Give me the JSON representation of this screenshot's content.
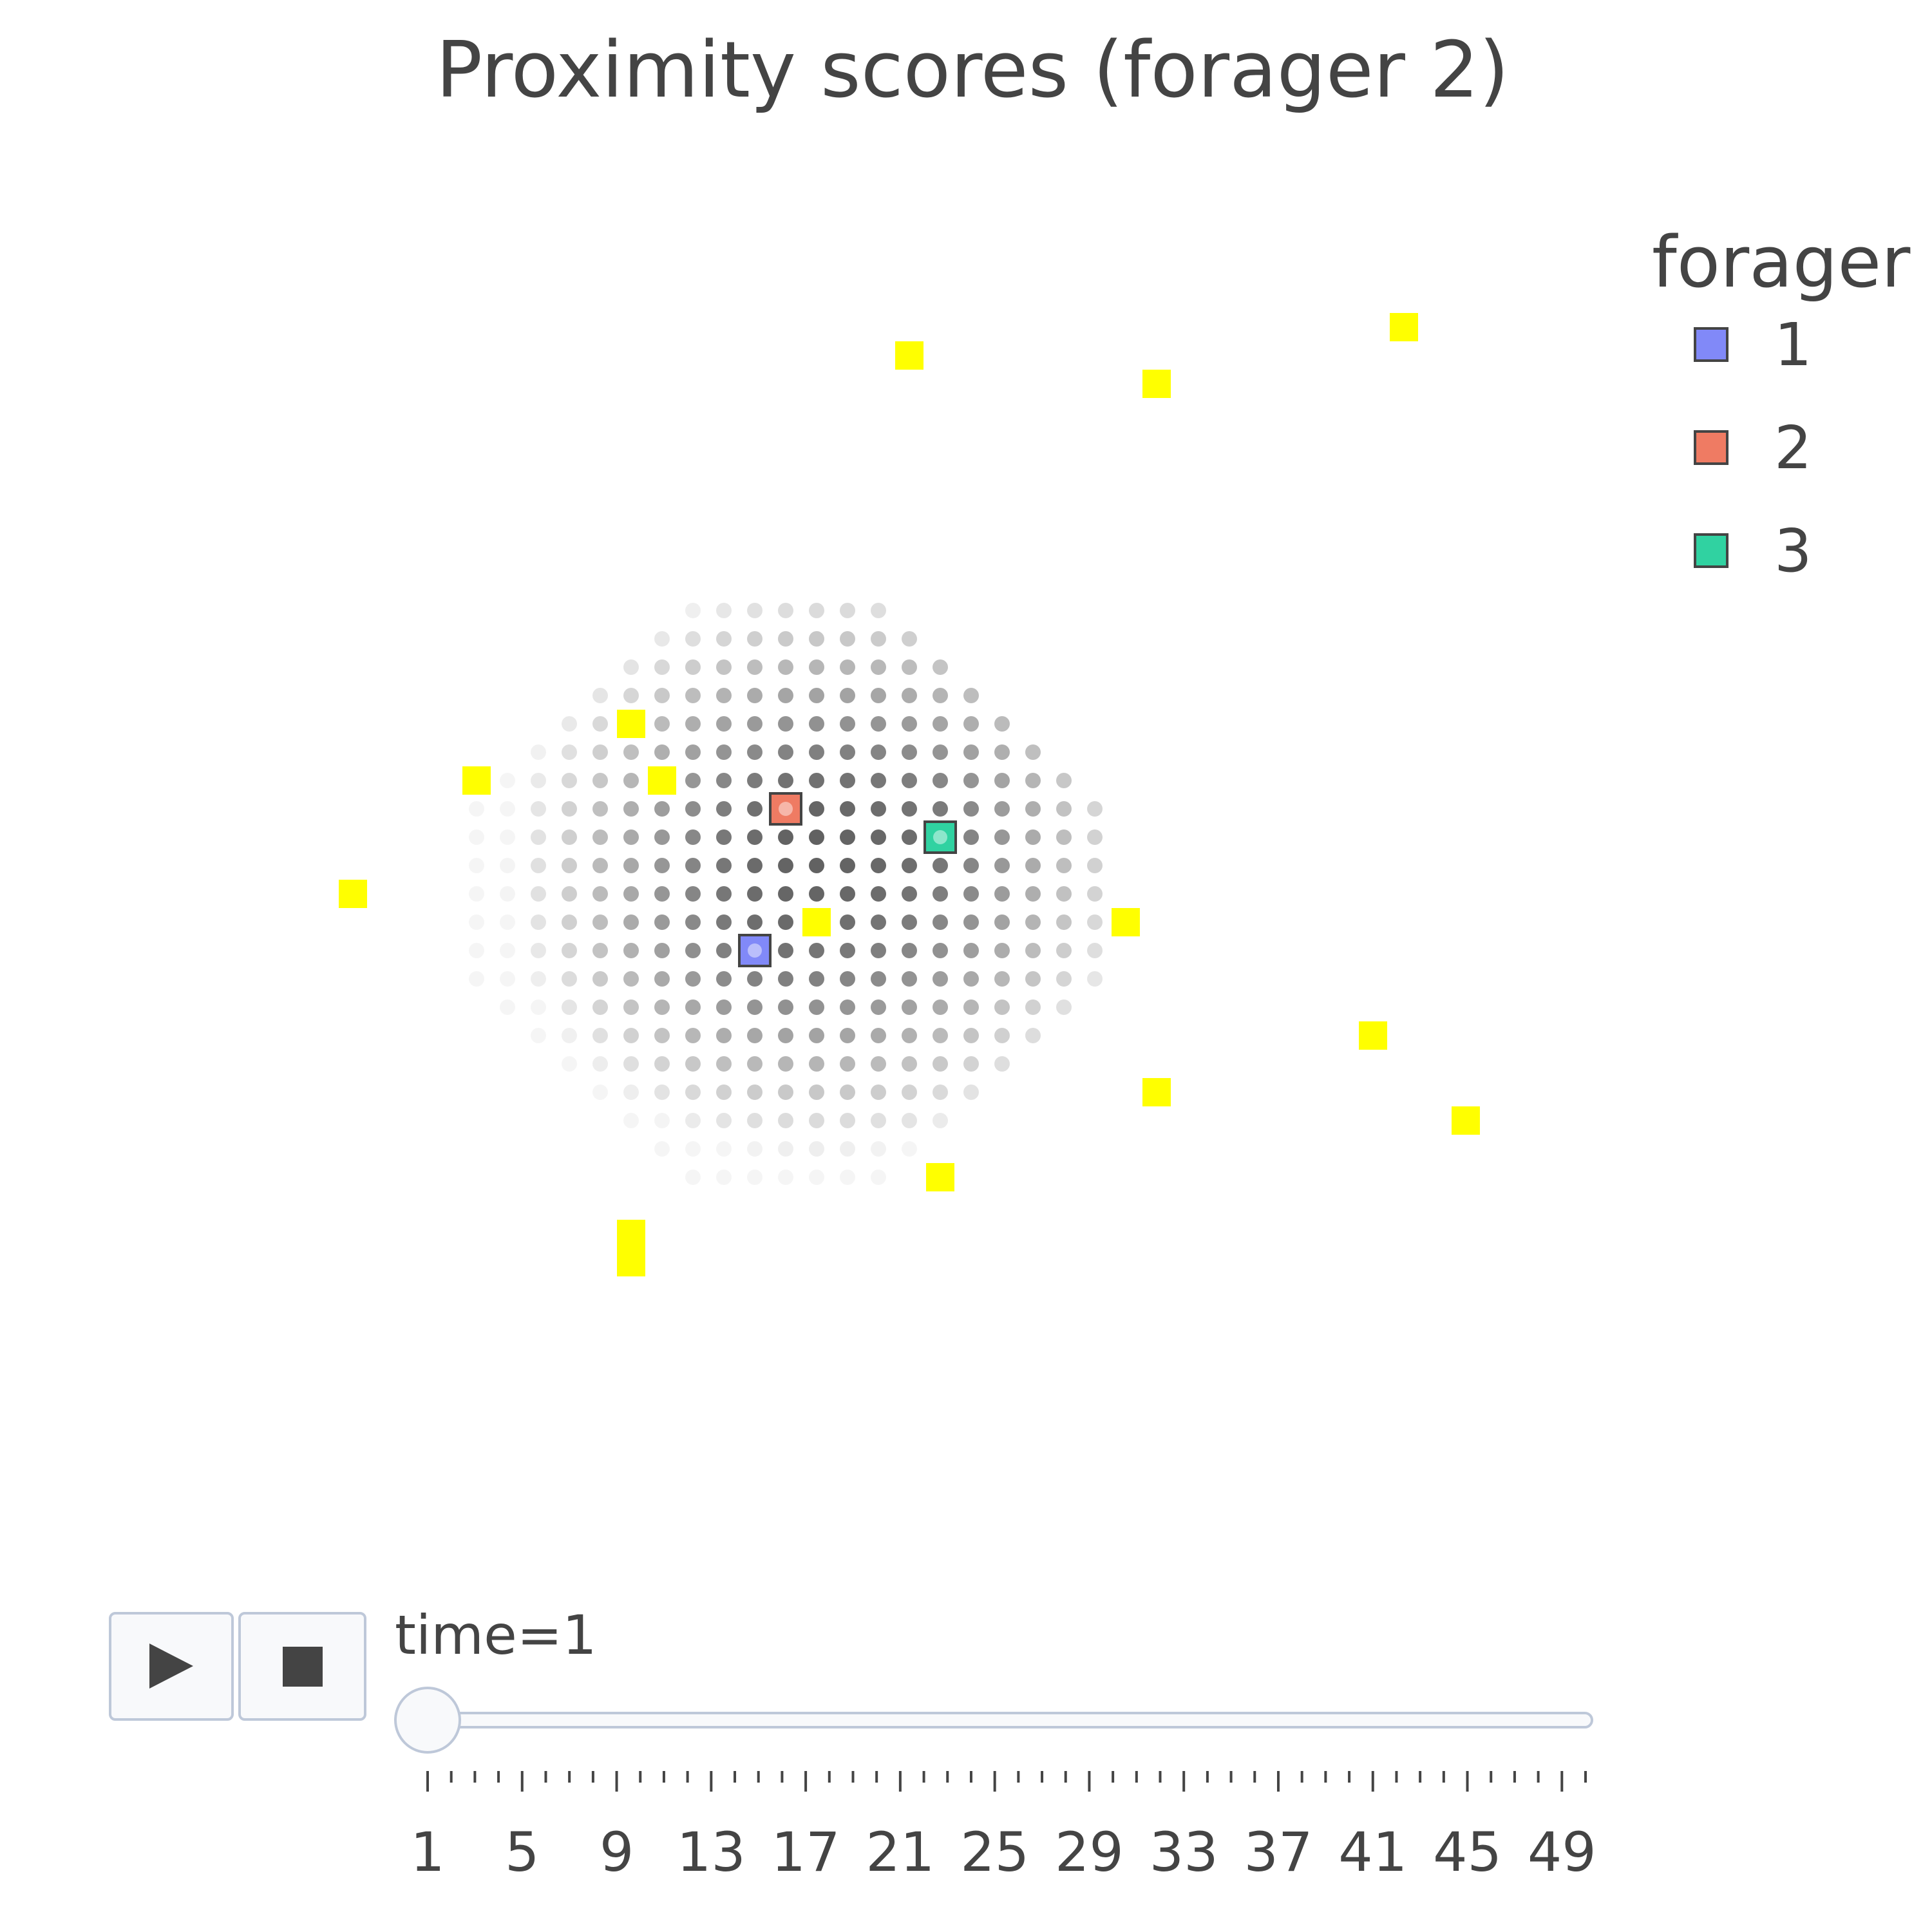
{
  "chart_data": {
    "type": "scatter",
    "title": "Proximity scores (forager 2)",
    "xlim": [
      0,
      50
    ],
    "ylim": [
      0,
      50
    ],
    "grid": false,
    "legend": {
      "title": "forager",
      "placement": "top-right",
      "entries": [
        {
          "name": "1",
          "color": "#8189f8"
        },
        {
          "name": "2",
          "color": "#ef7b63"
        },
        {
          "name": "3",
          "color": "#30d2a1"
        }
      ]
    },
    "foragers": [
      {
        "name": "1",
        "x": 19,
        "y": 21,
        "color": "#8189f8"
      },
      {
        "name": "2",
        "x": 20,
        "y": 26,
        "color": "#ef7b63"
      },
      {
        "name": "3",
        "x": 25,
        "y": 25,
        "color": "#30d2a1"
      }
    ],
    "rewards": {
      "color": "#ffff00",
      "points": [
        [
          15,
          29
        ],
        [
          16,
          27
        ],
        [
          21,
          22
        ],
        [
          10,
          27
        ],
        [
          6,
          23
        ],
        [
          24,
          42
        ],
        [
          32,
          41
        ],
        [
          40,
          43
        ],
        [
          31,
          22
        ],
        [
          32,
          16
        ],
        [
          39,
          18
        ],
        [
          42,
          15
        ],
        [
          25,
          13
        ],
        [
          15,
          10
        ],
        [
          15,
          11
        ]
      ]
    },
    "proximity_field": {
      "center": [
        20,
        23
      ],
      "radius": 10,
      "color": "#000000",
      "opacity_min": 0.04,
      "opacity_max": 0.72
    },
    "slider": {
      "label": "time=1",
      "current": 1,
      "min": 1,
      "max": 50,
      "tick_labels": [
        "1",
        "5",
        "9",
        "13",
        "17",
        "21",
        "25",
        "29",
        "33",
        "37",
        "41",
        "45",
        "49"
      ],
      "play_icon": "play-icon",
      "stop_icon": "stop-icon"
    }
  }
}
